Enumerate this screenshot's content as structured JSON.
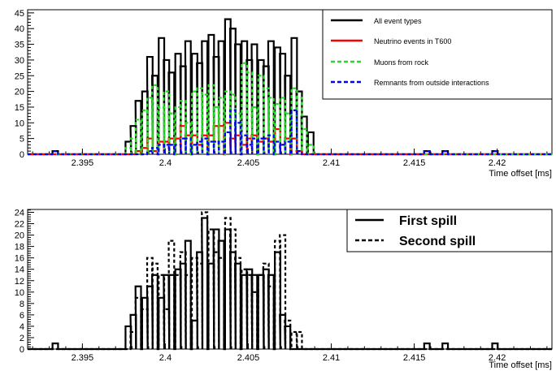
{
  "chart_data": [
    {
      "type": "histogram",
      "xlabel": "Time offset [ms]",
      "ylabel": "",
      "xlim": [
        2.3917,
        2.4233
      ],
      "ylim": [
        0,
        46
      ],
      "x_ticks": [
        "2.395",
        "2.4",
        "2.405",
        "2.41",
        "2.415",
        "2.42"
      ],
      "y_ticks": [
        "0",
        "5",
        "10",
        "15",
        "20",
        "25",
        "30",
        "35",
        "40",
        "45"
      ],
      "bin_width": 0.000333,
      "legend_position": "top-right",
      "series": [
        {
          "name": "All event types",
          "color": "#000000",
          "line": "solid",
          "points": [
            [
              2.3932,
              1
            ],
            [
              2.3976,
              4
            ],
            [
              2.3979,
              9
            ],
            [
              2.3982,
              17
            ],
            [
              2.3986,
              20
            ],
            [
              2.3989,
              31
            ],
            [
              2.3992,
              25
            ],
            [
              2.3996,
              37
            ],
            [
              2.3999,
              30
            ],
            [
              2.4002,
              26
            ],
            [
              2.4006,
              32
            ],
            [
              2.4009,
              28
            ],
            [
              2.4012,
              36
            ],
            [
              2.4016,
              32
            ],
            [
              2.4019,
              29
            ],
            [
              2.4022,
              36
            ],
            [
              2.4026,
              38
            ],
            [
              2.4029,
              31
            ],
            [
              2.4032,
              36
            ],
            [
              2.4036,
              43
            ],
            [
              2.4039,
              40
            ],
            [
              2.4042,
              35
            ],
            [
              2.4046,
              36
            ],
            [
              2.4049,
              30
            ],
            [
              2.4052,
              35
            ],
            [
              2.4056,
              30
            ],
            [
              2.4059,
              28
            ],
            [
              2.4062,
              36
            ],
            [
              2.4066,
              34
            ],
            [
              2.4069,
              32
            ],
            [
              2.4072,
              25
            ],
            [
              2.4076,
              37
            ],
            [
              2.4079,
              20
            ],
            [
              2.4082,
              12
            ],
            [
              2.4086,
              7
            ],
            [
              2.4156,
              1
            ],
            [
              2.4167,
              1
            ],
            [
              2.4197,
              1
            ]
          ]
        },
        {
          "name": "Neutrino events in T600",
          "color": "#ff0000",
          "line": "solid",
          "points": [
            [
              2.3982,
              1
            ],
            [
              2.3986,
              2
            ],
            [
              2.3989,
              5
            ],
            [
              2.3992,
              1
            ],
            [
              2.3996,
              4
            ],
            [
              2.3999,
              4
            ],
            [
              2.4002,
              5
            ],
            [
              2.4006,
              5
            ],
            [
              2.4009,
              9
            ],
            [
              2.4012,
              6
            ],
            [
              2.4016,
              6
            ],
            [
              2.4019,
              3
            ],
            [
              2.4022,
              6
            ],
            [
              2.4026,
              6
            ],
            [
              2.4029,
              9
            ],
            [
              2.4032,
              9
            ],
            [
              2.4036,
              10
            ],
            [
              2.4039,
              5
            ],
            [
              2.4042,
              6
            ],
            [
              2.4046,
              3
            ],
            [
              2.4049,
              5
            ],
            [
              2.4052,
              6
            ],
            [
              2.4056,
              4
            ],
            [
              2.4059,
              5
            ],
            [
              2.4062,
              4
            ],
            [
              2.4066,
              8
            ],
            [
              2.4069,
              3
            ],
            [
              2.4072,
              5
            ],
            [
              2.4076,
              5
            ],
            [
              2.4079,
              1
            ]
          ]
        },
        {
          "name": "Muons from rock",
          "color": "#22dd22",
          "line": "dashed",
          "points": [
            [
              2.3976,
              2
            ],
            [
              2.3979,
              5
            ],
            [
              2.3982,
              11
            ],
            [
              2.3986,
              14
            ],
            [
              2.3989,
              18
            ],
            [
              2.3992,
              22
            ],
            [
              2.3996,
              15
            ],
            [
              2.3999,
              20
            ],
            [
              2.4002,
              13
            ],
            [
              2.4006,
              15
            ],
            [
              2.4009,
              17
            ],
            [
              2.4012,
              10
            ],
            [
              2.4016,
              20
            ],
            [
              2.4019,
              21
            ],
            [
              2.4022,
              19
            ],
            [
              2.4026,
              22
            ],
            [
              2.4029,
              15
            ],
            [
              2.4032,
              18
            ],
            [
              2.4036,
              20
            ],
            [
              2.4039,
              19
            ],
            [
              2.4042,
              13
            ],
            [
              2.4046,
              29
            ],
            [
              2.4049,
              26
            ],
            [
              2.4052,
              15
            ],
            [
              2.4056,
              25
            ],
            [
              2.4059,
              21
            ],
            [
              2.4062,
              18
            ],
            [
              2.4066,
              16
            ],
            [
              2.4069,
              18
            ],
            [
              2.4072,
              13
            ],
            [
              2.4076,
              21
            ],
            [
              2.4079,
              18
            ],
            [
              2.4082,
              8
            ],
            [
              2.4086,
              3
            ]
          ]
        },
        {
          "name": "Remnants from outside interactions",
          "color": "#0000ff",
          "line": "dashed",
          "points": [
            [
              2.3932,
              1
            ],
            [
              2.3989,
              1
            ],
            [
              2.3992,
              2
            ],
            [
              2.3996,
              3
            ],
            [
              2.3999,
              3
            ],
            [
              2.4002,
              3
            ],
            [
              2.4006,
              3
            ],
            [
              2.4009,
              5
            ],
            [
              2.4012,
              5
            ],
            [
              2.4016,
              3
            ],
            [
              2.4019,
              4
            ],
            [
              2.4022,
              5
            ],
            [
              2.4026,
              4
            ],
            [
              2.4029,
              4
            ],
            [
              2.4032,
              4
            ],
            [
              2.4036,
              7
            ],
            [
              2.4039,
              14
            ],
            [
              2.4042,
              10
            ],
            [
              2.4046,
              6
            ],
            [
              2.4049,
              3
            ],
            [
              2.4052,
              5
            ],
            [
              2.4056,
              5
            ],
            [
              2.4059,
              5
            ],
            [
              2.4062,
              6
            ],
            [
              2.4066,
              4
            ],
            [
              2.4069,
              3
            ],
            [
              2.4072,
              4
            ],
            [
              2.4076,
              14
            ],
            [
              2.4079,
              1
            ],
            [
              2.4156,
              1
            ],
            [
              2.4167,
              1
            ],
            [
              2.4197,
              1
            ]
          ]
        }
      ]
    },
    {
      "type": "histogram",
      "xlabel": "Time offset [ms]",
      "ylabel": "",
      "xlim": [
        2.3917,
        2.4233
      ],
      "ylim": [
        0,
        24.5
      ],
      "x_ticks": [
        "2.395",
        "2.4",
        "2.405",
        "2.41",
        "2.415",
        "2.42"
      ],
      "y_ticks": [
        "0",
        "2",
        "4",
        "6",
        "8",
        "10",
        "12",
        "14",
        "16",
        "18",
        "20",
        "22",
        "24"
      ],
      "bin_width": 0.000333,
      "legend_position": "top-right",
      "series": [
        {
          "name": "First spill",
          "color": "#000000",
          "line": "solid",
          "points": [
            [
              2.3932,
              1
            ],
            [
              2.3976,
              4
            ],
            [
              2.3979,
              6
            ],
            [
              2.3982,
              11
            ],
            [
              2.3986,
              9
            ],
            [
              2.3989,
              11
            ],
            [
              2.3992,
              13
            ],
            [
              2.3996,
              9
            ],
            [
              2.3999,
              13
            ],
            [
              2.4002,
              13
            ],
            [
              2.4006,
              14
            ],
            [
              2.4009,
              15
            ],
            [
              2.4012,
              19
            ],
            [
              2.4016,
              5
            ],
            [
              2.4019,
              17
            ],
            [
              2.4022,
              23
            ],
            [
              2.4026,
              15
            ],
            [
              2.4029,
              21
            ],
            [
              2.4032,
              19
            ],
            [
              2.4036,
              21
            ],
            [
              2.4039,
              17
            ],
            [
              2.4042,
              15
            ],
            [
              2.4046,
              13
            ],
            [
              2.4049,
              14
            ],
            [
              2.4052,
              13
            ],
            [
              2.4056,
              13
            ],
            [
              2.4059,
              14
            ],
            [
              2.4062,
              13
            ],
            [
              2.4066,
              17
            ],
            [
              2.4069,
              6
            ],
            [
              2.4072,
              4
            ],
            [
              2.4156,
              1
            ],
            [
              2.4167,
              1
            ],
            [
              2.4197,
              1
            ]
          ]
        },
        {
          "name": "Second spill",
          "color": "#000000",
          "line": "dashed",
          "points": [
            [
              2.3979,
              3
            ],
            [
              2.3982,
              9
            ],
            [
              2.3986,
              7
            ],
            [
              2.3989,
              16
            ],
            [
              2.3992,
              15
            ],
            [
              2.3996,
              13
            ],
            [
              2.3999,
              7
            ],
            [
              2.4002,
              19
            ],
            [
              2.4006,
              13
            ],
            [
              2.4009,
              17
            ],
            [
              2.4012,
              13
            ],
            [
              2.4016,
              16
            ],
            [
              2.4019,
              15
            ],
            [
              2.4022,
              24
            ],
            [
              2.4026,
              21
            ],
            [
              2.4029,
              17
            ],
            [
              2.4032,
              16
            ],
            [
              2.4036,
              23
            ],
            [
              2.4039,
              21
            ],
            [
              2.4042,
              16
            ],
            [
              2.4046,
              14
            ],
            [
              2.4049,
              13
            ],
            [
              2.4052,
              10
            ],
            [
              2.4056,
              13
            ],
            [
              2.4059,
              15
            ],
            [
              2.4062,
              11
            ],
            [
              2.4066,
              19
            ],
            [
              2.4069,
              20
            ],
            [
              2.4072,
              5
            ],
            [
              2.4076,
              3
            ],
            [
              2.4079,
              3
            ]
          ]
        }
      ]
    }
  ]
}
